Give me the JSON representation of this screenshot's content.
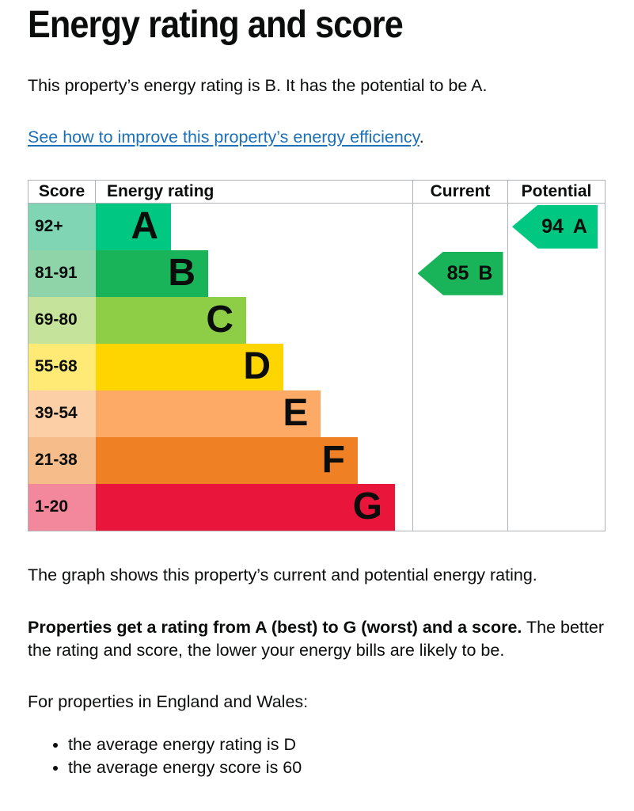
{
  "page": {
    "title": "Energy rating and score",
    "intro": "This property’s energy rating is B. It has the potential to be A.",
    "link_text": "See how to improve this property’s energy efficiency",
    "link_suffix": ".",
    "caption": "The graph shows this property’s current and potential energy rating.",
    "rating_bold": "Properties get a rating from A (best) to G (worst) and a score.",
    "rating_rest": " The better the rating and score, the lower your energy bills are likely to be.",
    "region_heading": "For properties in England and Wales:",
    "bullets": [
      "the average energy rating is D",
      "the average energy score is 60"
    ]
  },
  "chart_data": {
    "type": "table",
    "title": "Energy rating and score",
    "columns": {
      "score": "Score",
      "rating": "Energy rating",
      "current": "Current",
      "potential": "Potential"
    },
    "bands": [
      {
        "score": "92+",
        "letter": "A",
        "color": "#00c781",
        "tint": "#80d5b4",
        "width_pct": 23.75
      },
      {
        "score": "81-91",
        "letter": "B",
        "color": "#19b459",
        "tint": "#8ed4a8",
        "width_pct": 35.5
      },
      {
        "score": "69-80",
        "letter": "C",
        "color": "#8dce46",
        "tint": "#c5e39a",
        "width_pct": 47.5
      },
      {
        "score": "55-68",
        "letter": "D",
        "color": "#ffd500",
        "tint": "#ffea75",
        "width_pct": 59.25
      },
      {
        "score": "39-54",
        "letter": "E",
        "color": "#fcaa65",
        "tint": "#fdcfa6",
        "width_pct": 71.1
      },
      {
        "score": "21-38",
        "letter": "F",
        "color": "#ef8023",
        "tint": "#f6bc89",
        "width_pct": 82.75
      },
      {
        "score": "1-20",
        "letter": "G",
        "color": "#e9153b",
        "tint": "#f3879c",
        "width_pct": 94.5
      }
    ],
    "current": {
      "score": 85,
      "letter": "B",
      "band": "B",
      "color": "#19b459"
    },
    "potential": {
      "score": 94,
      "letter": "A",
      "band": "A",
      "color": "#00c781"
    }
  },
  "colors": {
    "text": "#0b0c0c",
    "link": "#1d70b8",
    "border": "#b1b4b6"
  }
}
